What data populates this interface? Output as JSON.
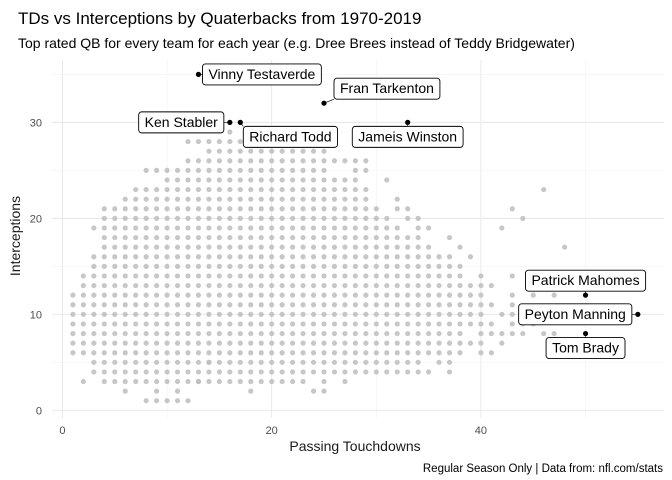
{
  "chart_data": {
    "type": "scatter",
    "title": "TDs vs Interceptions by Quaterbacks from 1970-2019",
    "subtitle": "Top rated QB for every team for each year (e.g. Dree Brees instead of Teddy Bridgewater)",
    "xlabel": "Passing Touchdowns",
    "ylabel": "Interceptions",
    "caption": "Regular Season Only | Data from: nfl.com/stats",
    "xlim": [
      -1,
      57.5
    ],
    "ylim": [
      -0.8,
      36.5
    ],
    "x_ticks": [
      0,
      20,
      40
    ],
    "y_ticks": [
      0,
      10,
      20,
      30
    ],
    "grid": true,
    "point_color": "#bdbdbd",
    "highlight_color": "#000000",
    "background_points": {
      "x_min": 1,
      "x_max": 49,
      "note_ranges": [
        [
          8,
          9,
          1,
          1
        ],
        [
          10,
          11,
          1,
          1
        ],
        [
          12,
          12,
          1,
          1
        ],
        [
          13,
          13,
          3,
          3
        ],
        [
          14,
          14,
          5,
          5
        ],
        [
          6,
          6,
          2,
          2
        ],
        [
          9,
          9,
          2,
          2
        ],
        [
          11,
          11,
          2,
          2
        ],
        [
          18,
          18,
          2,
          2
        ],
        [
          24,
          24,
          2,
          2
        ],
        [
          25,
          25,
          2,
          2
        ],
        [
          2,
          2,
          3,
          3
        ],
        [
          4,
          4,
          3,
          3
        ],
        [
          5,
          5,
          3,
          3
        ],
        [
          6,
          23,
          3,
          3
        ],
        [
          25,
          25,
          3,
          3
        ],
        [
          27,
          27,
          3,
          3
        ],
        [
          3,
          35,
          4,
          4
        ],
        [
          37,
          37,
          4,
          4
        ],
        [
          3,
          32,
          5,
          5
        ],
        [
          33,
          34,
          5,
          5
        ],
        [
          36,
          37,
          5,
          5
        ],
        [
          1,
          38,
          6,
          6
        ],
        [
          40,
          41,
          6,
          6
        ],
        [
          1,
          40,
          7,
          7
        ],
        [
          42,
          42,
          7,
          7
        ],
        [
          1,
          38,
          8,
          8
        ],
        [
          40,
          44,
          8,
          8
        ],
        [
          46,
          47,
          8,
          8
        ],
        [
          1,
          38,
          9,
          9
        ],
        [
          39,
          41,
          9,
          9
        ],
        [
          43,
          45,
          9,
          9
        ],
        [
          1,
          40,
          10,
          10
        ],
        [
          42,
          45,
          10,
          10
        ],
        [
          1,
          41,
          11,
          11
        ],
        [
          43,
          43,
          11,
          11
        ],
        [
          1,
          38,
          12,
          12
        ],
        [
          39,
          40,
          12,
          12
        ],
        [
          43,
          43,
          12,
          12
        ],
        [
          45,
          45,
          12,
          12
        ],
        [
          47,
          47,
          12,
          12
        ],
        [
          2,
          38,
          13,
          13
        ],
        [
          39,
          40,
          13,
          13
        ],
        [
          41,
          41,
          13,
          13
        ],
        [
          45,
          46,
          13,
          13
        ],
        [
          2,
          36,
          14,
          14
        ],
        [
          37,
          38,
          14,
          14
        ],
        [
          40,
          40,
          14,
          14
        ],
        [
          43,
          43,
          14,
          14
        ],
        [
          3,
          36,
          15,
          15
        ],
        [
          37,
          38,
          15,
          15
        ],
        [
          3,
          35,
          16,
          16
        ],
        [
          36,
          37,
          16,
          16
        ],
        [
          39,
          39,
          16,
          16
        ],
        [
          4,
          35,
          17,
          17
        ],
        [
          38,
          38,
          17,
          17
        ],
        [
          48,
          48,
          17,
          17
        ],
        [
          4,
          34,
          18,
          18
        ],
        [
          37,
          37,
          18,
          18
        ],
        [
          3,
          32,
          19,
          19
        ],
        [
          34,
          35,
          19,
          19
        ],
        [
          42,
          42,
          19,
          19
        ],
        [
          4,
          31,
          20,
          20
        ],
        [
          33,
          34,
          20,
          20
        ],
        [
          44,
          44,
          20,
          20
        ],
        [
          4,
          30,
          21,
          21
        ],
        [
          32,
          33,
          21,
          21
        ],
        [
          43,
          43,
          21,
          21
        ],
        [
          6,
          29,
          22,
          22
        ],
        [
          32,
          32,
          22,
          22
        ],
        [
          7,
          29,
          23,
          23
        ],
        [
          46,
          46,
          23,
          23
        ],
        [
          10,
          28,
          24,
          24
        ],
        [
          31,
          31,
          24,
          24
        ],
        [
          8,
          25,
          25,
          25
        ],
        [
          28,
          29,
          25,
          25
        ],
        [
          12,
          26,
          26,
          26
        ],
        [
          27,
          29,
          26,
          26
        ],
        [
          14,
          25,
          27,
          27
        ],
        [
          12,
          17,
          28,
          28
        ],
        [
          16,
          16,
          29,
          29
        ]
      ]
    },
    "highlighted": [
      {
        "name": "Vinny Testaverde",
        "x": 13,
        "y": 35,
        "anchor": "right"
      },
      {
        "name": "Fran Tarkenton",
        "x": 25,
        "y": 32,
        "anchor": "upright"
      },
      {
        "name": "Ken Stabler",
        "x": 16,
        "y": 30,
        "anchor": "left"
      },
      {
        "name": "Richard Todd",
        "x": 17,
        "y": 30,
        "anchor": "downright"
      },
      {
        "name": "Jameis Winston",
        "x": 33,
        "y": 30,
        "anchor": "down"
      },
      {
        "name": "Patrick Mahomes",
        "x": 50,
        "y": 12,
        "anchor": "up"
      },
      {
        "name": "Peyton Manning",
        "x": 55,
        "y": 10,
        "anchor": "left"
      },
      {
        "name": "Tom Brady",
        "x": 50,
        "y": 8,
        "anchor": "down"
      }
    ]
  }
}
